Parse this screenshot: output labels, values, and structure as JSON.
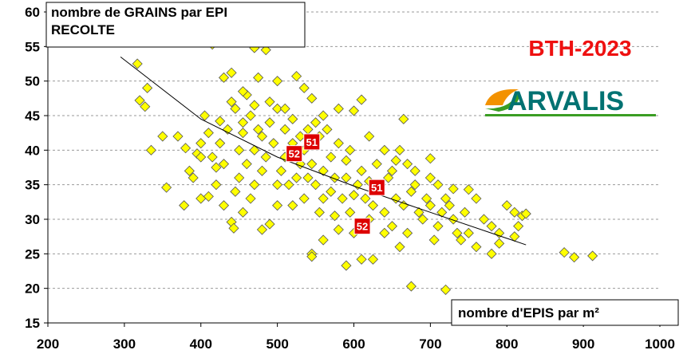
{
  "chart_data": {
    "type": "scatter",
    "title": "BTH-2023",
    "logo": "ARVALIS",
    "ylabel": [
      "nombre de GRAINS par EPI",
      "RECOLTE"
    ],
    "xlabel": "nombre d'EPIS par m²",
    "xlim": [
      200,
      1000
    ],
    "xticks": [
      200,
      300,
      400,
      500,
      600,
      700,
      800,
      900,
      1000
    ],
    "ylim": [
      15,
      60
    ],
    "yticks": [
      15,
      20,
      25,
      30,
      35,
      40,
      45,
      50,
      55,
      60
    ],
    "grid": true,
    "color": "#ffff00",
    "x": [
      317,
      415,
      470,
      485,
      330,
      320,
      327,
      335,
      350,
      355,
      370,
      380,
      385,
      395,
      400,
      378,
      410,
      420,
      440,
      443,
      425,
      430,
      440,
      460,
      475,
      500,
      525,
      535,
      545,
      540,
      550,
      560,
      580,
      600,
      610,
      665,
      620,
      640,
      655,
      670,
      680,
      700,
      710,
      720,
      730,
      750,
      760,
      770,
      780,
      790,
      800,
      810,
      820,
      825,
      815,
      810,
      790,
      780,
      760,
      740,
      720,
      675,
      590,
      610,
      625,
      545,
      560,
      580,
      600,
      620,
      640,
      650,
      660,
      670,
      690,
      700,
      710,
      730,
      750,
      545,
      480,
      490,
      500,
      520,
      535,
      555,
      570,
      590,
      610,
      630,
      450,
      460,
      470,
      480,
      490,
      500,
      510,
      520,
      530,
      540,
      550,
      560,
      570,
      580,
      595,
      605,
      615,
      625,
      635,
      645,
      655,
      665,
      675,
      685,
      695,
      705,
      715,
      725,
      735,
      745,
      400,
      405,
      410,
      415,
      420,
      425,
      430,
      435,
      445,
      450,
      455,
      465,
      475,
      485,
      495,
      505,
      515,
      525,
      535,
      555,
      565,
      575,
      585,
      595,
      430,
      445,
      455,
      465,
      470,
      390,
      400,
      875,
      888,
      912,
      440,
      455,
      470,
      490,
      510,
      520,
      455,
      480,
      500,
      510,
      530,
      545,
      560,
      575,
      590,
      620,
      650,
      660,
      680,
      700,
      640,
      600
    ],
    "y": [
      52.5,
      55.3,
      54.8,
      54.5,
      49,
      47.2,
      46.3,
      40,
      42,
      34.6,
      42,
      40.3,
      37,
      39.5,
      33,
      32,
      33.3,
      35,
      29.6,
      28.7,
      44.2,
      50.5,
      51.2,
      48,
      50.5,
      50,
      50.7,
      49,
      47.5,
      43,
      44,
      45,
      46,
      45.7,
      47.3,
      44.5,
      42,
      40,
      38.5,
      38,
      37,
      38.8,
      35,
      33,
      34.4,
      34.3,
      33,
      30,
      29,
      28,
      32,
      31,
      30.5,
      30.8,
      29,
      27.5,
      26.5,
      25,
      26,
      27,
      19.8,
      20.3,
      23.3,
      24.2,
      24.2,
      25,
      27,
      28.5,
      28,
      30,
      31,
      29,
      26,
      28,
      30,
      32,
      29,
      30,
      28,
      24.6,
      28.5,
      29.3,
      32,
      32,
      33,
      31,
      34,
      36,
      37,
      38,
      36,
      38,
      40,
      42,
      44,
      46,
      43,
      41,
      38,
      36,
      35,
      37,
      39,
      41,
      40,
      35,
      33,
      32,
      35,
      36,
      33,
      32,
      34,
      31,
      33,
      27,
      31,
      32,
      28,
      31,
      41,
      45,
      42.5,
      39,
      37.5,
      41,
      38,
      43,
      46,
      40,
      44,
      45,
      43,
      39,
      41,
      37,
      35,
      36,
      40,
      42,
      43,
      36,
      33,
      31,
      32,
      34,
      31,
      33,
      35,
      36,
      39,
      25.2,
      24.5,
      24.7,
      47,
      48.5,
      46.5,
      47,
      46,
      44.5,
      42.5,
      37,
      35,
      39,
      42,
      38,
      33,
      30.5,
      38.5,
      35.5,
      37,
      40,
      35,
      36,
      28,
      33.5
    ],
    "trend": {
      "x": [
        295,
        400,
        500,
        600,
        700,
        825
      ],
      "y": [
        53.5,
        44.5,
        39,
        34.8,
        31,
        26.3
      ]
    },
    "annotations": [
      {
        "text": "51",
        "x": 545,
        "y": 41.2
      },
      {
        "text": "52",
        "x": 522,
        "y": 39.5
      },
      {
        "text": "51",
        "x": 630,
        "y": 34.6
      },
      {
        "text": "52",
        "x": 611,
        "y": 29
      }
    ]
  }
}
